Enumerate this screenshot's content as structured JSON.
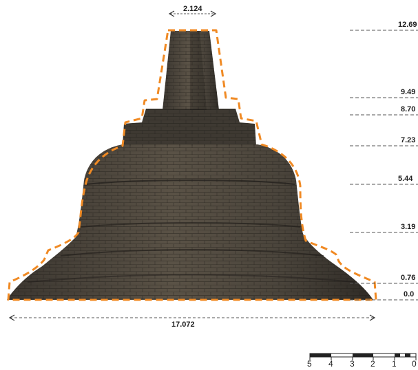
{
  "top_width": "2.124",
  "base_width": "17.072",
  "elevation_levels": [
    "12.69",
    "9.49",
    "8.70",
    "7.23",
    "5.44",
    "3.19",
    "0.76",
    "0.0"
  ],
  "scale_bar_labels": [
    "5",
    "4",
    "3",
    "2",
    "1",
    "0"
  ],
  "colors": {
    "outline": "#f08a24",
    "stone_dark": "#2e2b27",
    "stone_mid": "#4a443c",
    "stone_light": "#6b6152",
    "text": "#222222",
    "guide": "#555555"
  }
}
